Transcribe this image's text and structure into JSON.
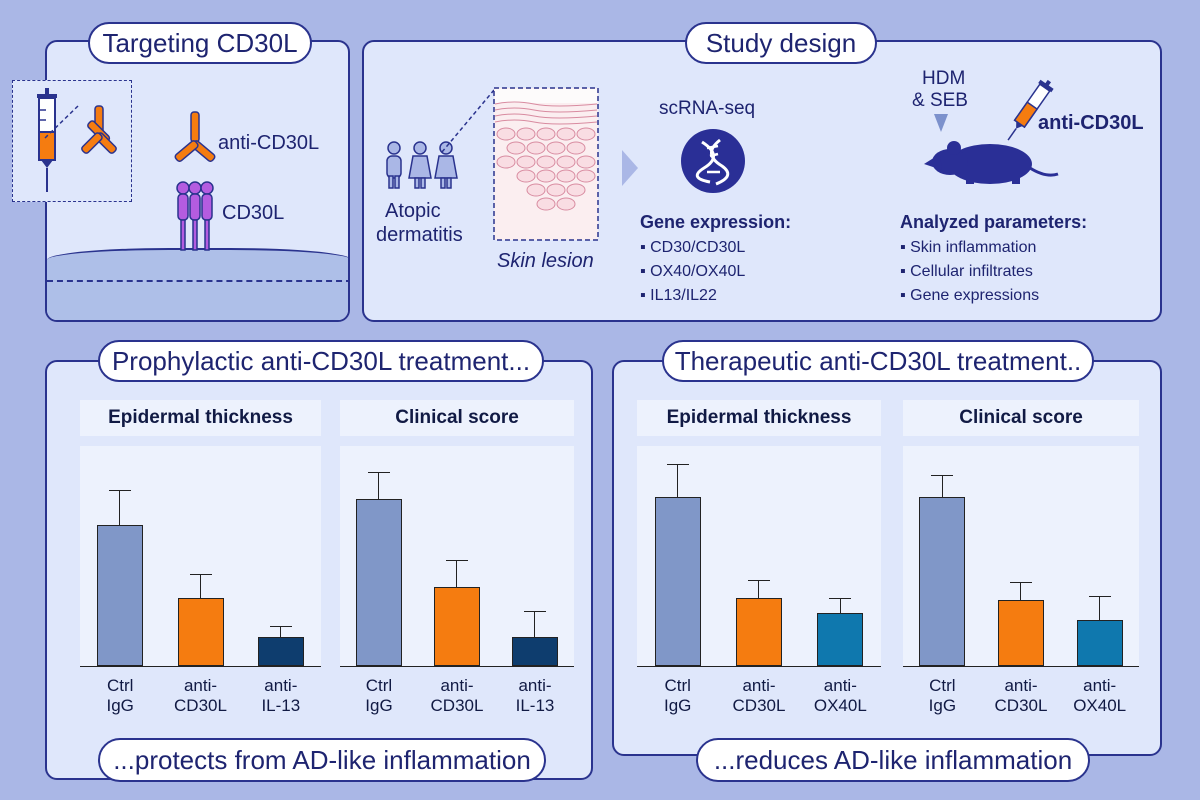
{
  "targeting": {
    "title": "Targeting CD30L",
    "antibody_label": "anti-CD30L",
    "receptor_label": "CD30L"
  },
  "study": {
    "title": "Study design",
    "patient_label_line1": "Atopic",
    "patient_label_line2": "dermatitis",
    "skin_label": "Skin lesion",
    "scrna_label": "scRNA-seq",
    "gene_heading": "Gene expression:",
    "genes": [
      "CD30/CD30L",
      "OX40/OX40L",
      "IL13/IL22"
    ],
    "hdm_line1": "HDM",
    "hdm_line2": "& SEB",
    "mouse_treatment": "anti-CD30L",
    "params_heading": "Analyzed parameters:",
    "params": [
      "Skin inflammation",
      "Cellular infiltrates",
      "Gene expressions"
    ]
  },
  "prophylactic": {
    "title": "Prophylactic anti-CD30L treatment...",
    "conclusion": "...protects from AD-like inflammation"
  },
  "therapeutic": {
    "title": "Therapeutic anti-CD30L treatment..",
    "conclusion": "...reduces AD-like inflammation"
  },
  "colors": {
    "ctrl": "#8097c8",
    "anti_cd30l": "#f57c10",
    "anti_il13": "#0e3d6e",
    "anti_ox40l": "#0f78ae",
    "navy": "#2a338e"
  },
  "chart_data": [
    {
      "type": "bar",
      "title": "Epidermal thickness",
      "categories": [
        "Ctrl IgG",
        "anti-CD30L",
        "anti-IL-13"
      ],
      "cat_lines": [
        [
          "Ctrl",
          "IgG"
        ],
        [
          "anti-",
          "CD30L"
        ],
        [
          "anti-",
          "IL-13"
        ]
      ],
      "values": [
        64,
        31,
        13
      ],
      "errors": [
        16,
        11,
        5
      ],
      "ylim": [
        0,
        100
      ],
      "colors": [
        "ctrl",
        "anti_cd30l",
        "anti_il13"
      ]
    },
    {
      "type": "bar",
      "title": "Clinical score",
      "categories": [
        "Ctrl IgG",
        "anti-CD30L",
        "anti-IL-13"
      ],
      "cat_lines": [
        [
          "Ctrl",
          "IgG"
        ],
        [
          "anti-",
          "CD30L"
        ],
        [
          "anti-",
          "IL-13"
        ]
      ],
      "values": [
        76,
        36,
        13
      ],
      "errors": [
        12,
        12,
        12
      ],
      "ylim": [
        0,
        100
      ],
      "colors": [
        "ctrl",
        "anti_cd30l",
        "anti_il13"
      ]
    },
    {
      "type": "bar",
      "title": "Epidermal thickness",
      "categories": [
        "Ctrl IgG",
        "anti-CD30L",
        "anti-OX40L"
      ],
      "cat_lines": [
        [
          "Ctrl",
          "IgG"
        ],
        [
          "anti-",
          "CD30L"
        ],
        [
          "anti-",
          "OX40L"
        ]
      ],
      "values": [
        77,
        31,
        24
      ],
      "errors": [
        15,
        8,
        7
      ],
      "ylim": [
        0,
        100
      ],
      "colors": [
        "ctrl",
        "anti_cd30l",
        "anti_ox40l"
      ]
    },
    {
      "type": "bar",
      "title": "Clinical score",
      "categories": [
        "Ctrl IgG",
        "anti-CD30L",
        "anti-OX40L"
      ],
      "cat_lines": [
        [
          "Ctrl",
          "IgG"
        ],
        [
          "anti-",
          "CD30L"
        ],
        [
          "anti-",
          "OX40L"
        ]
      ],
      "values": [
        77,
        30,
        21
      ],
      "errors": [
        10,
        8,
        11
      ],
      "ylim": [
        0,
        100
      ],
      "colors": [
        "ctrl",
        "anti_cd30l",
        "anti_ox40l"
      ]
    }
  ]
}
